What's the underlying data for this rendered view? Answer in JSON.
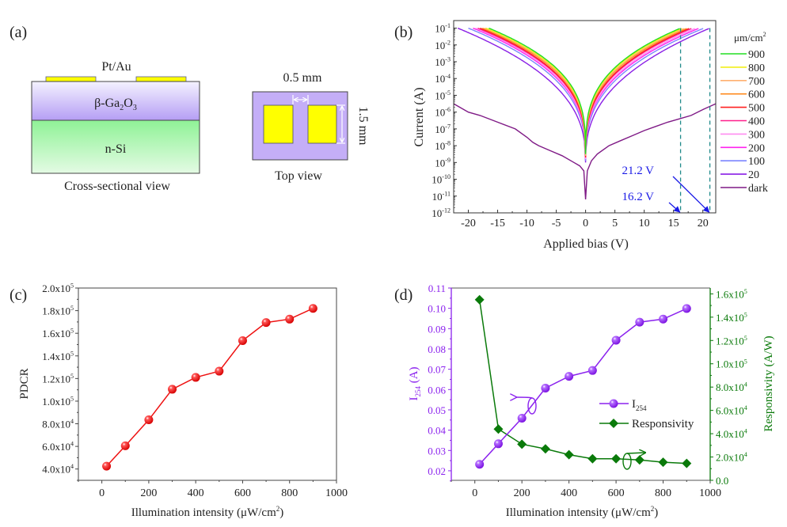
{
  "panel_a": {
    "label": "(a)",
    "contact_label": "Pt/Au",
    "layer_top": "β-Ga",
    "layer_top_sub1": "2",
    "layer_top_mid": "O",
    "layer_top_sub2": "3",
    "layer_bottom": "n-Si",
    "cross_caption": "Cross-sectional view",
    "gap_label": "0.5 mm",
    "height_label": "1.5 mm",
    "top_caption": "Top view",
    "colors": {
      "contact": "#ffff00",
      "ga2o3": "#b7a3f5",
      "si": "#97f39b",
      "top_bg": "#c4aef7"
    }
  },
  "chart_data": [
    {
      "id": "b",
      "type": "line",
      "label": "(b)",
      "title": "",
      "xlabel": "Applied bias (V)",
      "ylabel": "Current (A)",
      "xscale": "linear",
      "yscale": "log",
      "xlim": [
        -22.5,
        22.2
      ],
      "ylim_exp": [
        -12,
        -0.55
      ],
      "xticks": [
        -20,
        -15,
        -10,
        -5,
        0,
        5,
        10,
        15,
        20
      ],
      "xtick_labels": [
        "-20",
        "-15",
        "-10",
        "-5",
        "0",
        "5",
        "10",
        "15",
        "20"
      ],
      "yticks_exp": [
        -1,
        -2,
        -3,
        -4,
        -5,
        -6,
        -7,
        -8,
        -9,
        -10,
        -11,
        -12
      ],
      "legend_title": "μm/cm",
      "legend_title_sup": "2",
      "legend_position": "right-outside",
      "series": [
        {
          "name": "900",
          "color": "#22dd22",
          "vmin": -16.5,
          "vmax": 16.2,
          "floor_exp": -8.5,
          "k": 1.0
        },
        {
          "name": "800",
          "color": "#f2ef1a",
          "vmin": -17.0,
          "vmax": 16.6,
          "floor_exp": -8.5,
          "k": 0.97
        },
        {
          "name": "700",
          "color": "#ffb070",
          "vmin": -17.2,
          "vmax": 17.0,
          "floor_exp": -8.6,
          "k": 0.95
        },
        {
          "name": "600",
          "color": "#ff8a1e",
          "vmin": -17.6,
          "vmax": 17.4,
          "floor_exp": -8.6,
          "k": 0.93
        },
        {
          "name": "500",
          "color": "#ff2020",
          "vmin": -18.0,
          "vmax": 17.8,
          "floor_exp": -8.7,
          "k": 0.9
        },
        {
          "name": "400",
          "color": "#ff1f8c",
          "vmin": -18.4,
          "vmax": 18.2,
          "floor_exp": -8.7,
          "k": 0.88
        },
        {
          "name": "300",
          "color": "#ff8cf0",
          "vmin": -18.8,
          "vmax": 18.8,
          "floor_exp": -8.8,
          "k": 0.85
        },
        {
          "name": "200",
          "color": "#ff22ee",
          "vmin": -19.2,
          "vmax": 19.4,
          "floor_exp": -8.8,
          "k": 0.82
        },
        {
          "name": "100",
          "color": "#7b85ff",
          "vmin": -20.0,
          "vmax": 20.2,
          "floor_exp": -8.9,
          "k": 0.78
        },
        {
          "name": "20",
          "color": "#8a1fe6",
          "vmin": -21.8,
          "vmax": 21.2,
          "floor_exp": -9.0,
          "k": 0.62
        },
        {
          "name": "dark",
          "color": "#7f1a86",
          "dark": true
        }
      ],
      "dark_curve": {
        "x": [
          -22.5,
          -20,
          -18,
          -15,
          -12,
          -10,
          -9,
          -8,
          -6,
          -4,
          -2,
          -1,
          -0.3,
          0,
          0.3,
          1,
          2,
          4,
          6,
          8,
          10,
          12,
          14,
          16,
          18,
          20,
          22.2
        ],
        "log_i": [
          -5.5,
          -6.0,
          -6.2,
          -6.6,
          -7.0,
          -7.5,
          -7.8,
          -8.0,
          -8.3,
          -8.6,
          -9.0,
          -9.2,
          -9.5,
          -11.2,
          -9.5,
          -8.9,
          -8.5,
          -8.0,
          -7.7,
          -7.4,
          -7.1,
          -6.85,
          -6.6,
          -6.4,
          -6.2,
          -5.85,
          -5.5
        ]
      },
      "annotations": [
        {
          "text": "21.2 V",
          "color": "#1a1ae6",
          "target_v": 21.2
        },
        {
          "text": "16.2 V",
          "color": "#1a1ae6",
          "target_v": 16.2
        }
      ],
      "guide_lines": {
        "x": [
          16.2,
          21.2
        ],
        "color": "#1f8a8a",
        "style": "dashed"
      }
    },
    {
      "id": "c",
      "type": "line",
      "label": "(c)",
      "title": "",
      "xlabel": "Illumination intensity (μW/cm",
      "xlabel_sup": "2",
      "xlabel_end": ")",
      "ylabel": "PDCR",
      "xlim": [
        -100,
        1000
      ],
      "ylim": [
        30000,
        200000
      ],
      "xticks": [
        0,
        200,
        400,
        600,
        800,
        1000
      ],
      "xtick_labels": [
        "0",
        "200",
        "400",
        "600",
        "800",
        "1000"
      ],
      "yticks": [
        40000,
        60000,
        80000,
        100000,
        120000,
        140000,
        160000,
        180000,
        200000
      ],
      "ytick_labels": [
        [
          "4.0x10",
          "4"
        ],
        [
          "6.0x10",
          "4"
        ],
        [
          "8.0x10",
          "4"
        ],
        [
          "1.0x10",
          "5"
        ],
        [
          "1.2x10",
          "5"
        ],
        [
          "1.4x10",
          "5"
        ],
        [
          "1.6x10",
          "5"
        ],
        [
          "1.8x10",
          "5"
        ],
        [
          "2.0x10",
          "5"
        ]
      ],
      "x": [
        20,
        100,
        200,
        300,
        400,
        500,
        600,
        700,
        800,
        900
      ],
      "series": [
        {
          "name": "PDCR",
          "color": "#ee1111",
          "marker": "sphere",
          "values": [
            42500,
            60500,
            83500,
            110500,
            121000,
            126500,
            153500,
            169500,
            172500,
            182000
          ]
        }
      ]
    },
    {
      "id": "d",
      "type": "line",
      "label": "(d)",
      "title": "",
      "xlabel": "Illumination intensity (μW/cm",
      "xlabel_sup": "2",
      "xlabel_end": ")",
      "ylabel_left": "I",
      "ylabel_left_sub": "254",
      "ylabel_left_end": " (A)",
      "ylabel_right": "Responsivity (A/W)",
      "xlim": [
        -100,
        1000
      ],
      "ylim_left": [
        0.0153,
        0.11
      ],
      "ylim_right": [
        0,
        165000
      ],
      "xticks": [
        0,
        200,
        400,
        600,
        800,
        1000
      ],
      "xtick_labels": [
        "0",
        "200",
        "400",
        "600",
        "800",
        "1000"
      ],
      "yticks_left": [
        0.02,
        0.03,
        0.04,
        0.05,
        0.06,
        0.07,
        0.08,
        0.09,
        0.1,
        0.11
      ],
      "ytick_labels_left": [
        "0.02",
        "0.03",
        "0.04",
        "0.05",
        "0.06",
        "0.07",
        "0.08",
        "0.09",
        "0.10",
        "0.11"
      ],
      "yticks_right": [
        0,
        20000,
        40000,
        60000,
        80000,
        100000,
        120000,
        140000,
        160000
      ],
      "ytick_labels_right": [
        [
          "0.0",
          ""
        ],
        [
          "2.0x10",
          "4"
        ],
        [
          "4.0x10",
          "4"
        ],
        [
          "6.0x10",
          "4"
        ],
        [
          "8.0x10",
          "4"
        ],
        [
          "1.0x10",
          "5"
        ],
        [
          "1.2x10",
          "5"
        ],
        [
          "1.4x10",
          "5"
        ],
        [
          "1.6x10",
          "5"
        ]
      ],
      "x": [
        20,
        100,
        200,
        300,
        400,
        500,
        600,
        700,
        800,
        900
      ],
      "legend_position": "center-right",
      "series": [
        {
          "name": "I",
          "name_sub": "254",
          "axis": "left",
          "color": "#8b22ee",
          "marker": "sphere",
          "values": [
            0.0232,
            0.0333,
            0.0459,
            0.0607,
            0.0665,
            0.0694,
            0.0843,
            0.0932,
            0.0947,
            0.0999
          ]
        },
        {
          "name": "Responsivity",
          "axis": "right",
          "color": "#0a7a0a",
          "marker": "diamond",
          "values": [
            155000,
            44000,
            31000,
            27000,
            22000,
            18500,
            18500,
            17500,
            15500,
            14500
          ]
        }
      ]
    }
  ]
}
